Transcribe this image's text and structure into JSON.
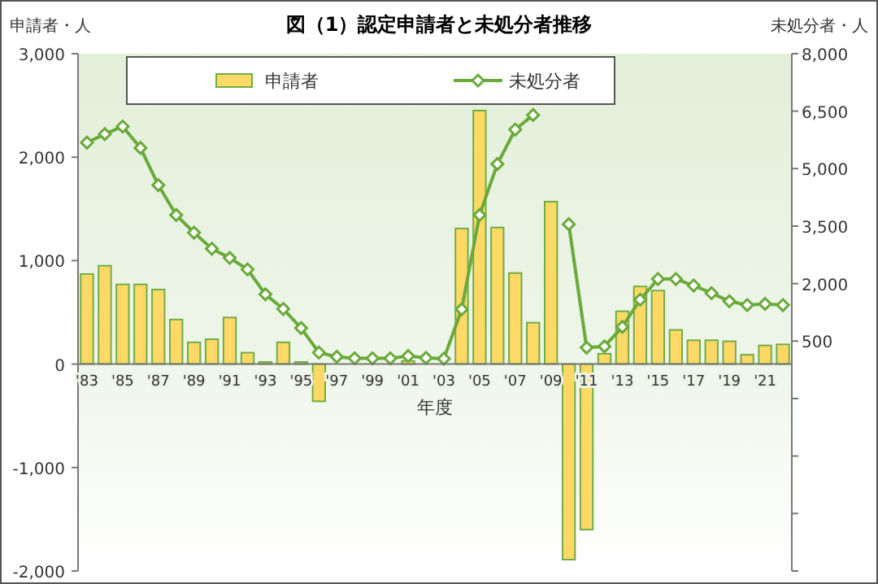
{
  "chart_data": {
    "type": "bar",
    "title": "図（1）認定申請者と未処分者推移",
    "xlabel": "年度",
    "ylabel": "申請者・人",
    "y2label": "未処分者・人",
    "categories": [
      "'83",
      null,
      "'85",
      null,
      "'87",
      null,
      "'89",
      null,
      "'91",
      null,
      "'93",
      null,
      "'95",
      null,
      "'97",
      null,
      "'99",
      null,
      "'01",
      null,
      "'03",
      null,
      "'05",
      null,
      "'07",
      null,
      "'09",
      null,
      "'11",
      null,
      "'13",
      null,
      "'15",
      null,
      "'17",
      null,
      "'19",
      null,
      "'21",
      null
    ],
    "series": [
      {
        "name": "申請者",
        "color": "#ffd966",
        "values": [
          870,
          950,
          770,
          770,
          720,
          430,
          210,
          240,
          450,
          110,
          20,
          210,
          20,
          -360,
          0,
          0,
          0,
          0,
          30,
          0,
          0,
          1310,
          2450,
          1320,
          880,
          400,
          1570,
          -1890,
          -1600,
          100,
          510,
          750,
          710,
          330,
          230,
          230,
          220,
          90,
          180,
          190
        ]
      },
      {
        "name": "未処分者",
        "type": "line",
        "axis": "y2",
        "color": "#6aaa3a",
        "marker": "diamond",
        "values": [
          5680,
          5900,
          6100,
          5540,
          4570,
          3790,
          3330,
          2910,
          2670,
          2370,
          1720,
          1340,
          840,
          200,
          90,
          50,
          50,
          50,
          110,
          60,
          40,
          1330,
          3790,
          5120,
          6020,
          6400,
          null,
          3550,
          330,
          360,
          870,
          1580,
          2120,
          2120,
          1950,
          1750,
          1540,
          1440,
          1470,
          1440
        ]
      }
    ],
    "ylim": [
      -2000,
      3000
    ],
    "yticks": [
      {
        "value": -2000,
        "label": "-2,000"
      },
      {
        "value": -1000,
        "label": "-1,000"
      },
      0,
      {
        "value": 1000,
        "label": "1,000"
      },
      {
        "value": 2000,
        "label": "2,000"
      },
      {
        "value": 3000,
        "label": "3,000"
      }
    ],
    "y2lim": [
      -5500,
      8000
    ],
    "y2ticks": [
      {
        "value": -5500,
        "label": null
      },
      {
        "value": -4000,
        "label": null
      },
      {
        "value": -2500,
        "label": null
      },
      {
        "value": -1000,
        "label": null
      },
      500,
      {
        "value": 2000,
        "label": "2,000"
      },
      {
        "value": 3500,
        "label": "3,500"
      },
      {
        "value": 5000,
        "label": "5,000"
      },
      {
        "value": 6500,
        "label": "6,500"
      },
      {
        "value": 8000,
        "label": "8,000"
      }
    ],
    "legend": "top",
    "grid": false
  }
}
